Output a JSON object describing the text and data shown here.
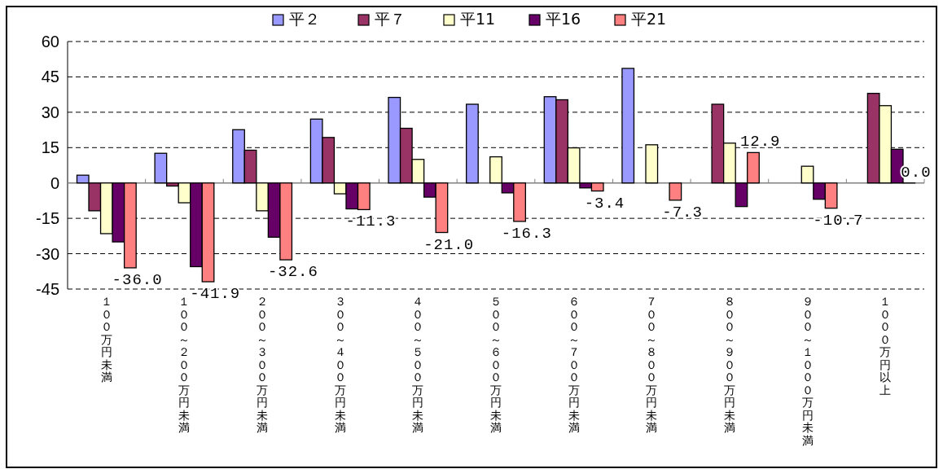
{
  "chart_data": {
    "type": "bar",
    "categories": [
      "１００万円未満",
      "１００～２００万円未満",
      "２００～３００万円未満",
      "３００～４００万円未満",
      "４００～５００万円未満",
      "５００～６００万円未満",
      "６００～７００万円未満",
      "７００～８００万円未満",
      "８００～９００万円未満",
      "９００～１０００万円未満",
      "１０００万円以上"
    ],
    "series": [
      {
        "name": "平２",
        "color": "#9999ff",
        "values": [
          3.3,
          12.6,
          22.6,
          27.1,
          36.3,
          33.4,
          36.6,
          48.6,
          null,
          null,
          null
        ]
      },
      {
        "name": "平７",
        "color": "#993366",
        "values": [
          -11.8,
          -1.3,
          13.9,
          19.3,
          23.2,
          null,
          35.3,
          null,
          33.4,
          null,
          38.0
        ]
      },
      {
        "name": "平11",
        "color": "#ffffcc",
        "values": [
          -21.5,
          -8.4,
          -11.8,
          -4.6,
          10.0,
          11.1,
          14.9,
          16.2,
          16.9,
          7.1,
          32.8
        ]
      },
      {
        "name": "平16",
        "color": "#660066",
        "values": [
          -25.0,
          -35.5,
          -23.0,
          -11.0,
          -6.0,
          -4.2,
          -2.1,
          null,
          -10.0,
          -6.9,
          14.3
        ]
      },
      {
        "name": "平21",
        "color": "#ff8080",
        "values": [
          -36.0,
          -41.9,
          -32.6,
          -11.3,
          -21.0,
          -16.3,
          -3.4,
          -7.3,
          12.9,
          -10.7,
          0.0
        ],
        "value_labels": [
          "-36.0",
          "-41.9",
          "-32.6",
          "-11.3",
          "-21.0",
          "-16.3",
          "-3.4",
          "-7.3",
          "12.9",
          "-10.7",
          "0.0"
        ]
      }
    ],
    "ylim": [
      -45,
      60
    ],
    "yticks": [
      -45,
      -30,
      -15,
      0,
      15,
      30,
      45,
      60
    ],
    "grid": "y",
    "legend": "top"
  }
}
